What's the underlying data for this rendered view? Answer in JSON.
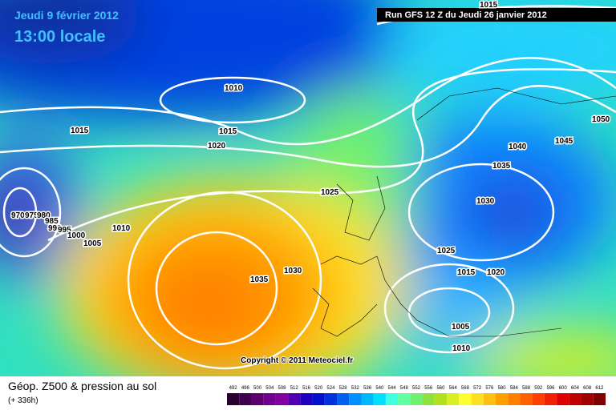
{
  "header": {
    "date": "Jeudi 9 février 2012",
    "time": "13:00 locale",
    "run": "Run GFS 12 Z du Jeudi 26 janvier 2012"
  },
  "map": {
    "isobar_labels": [
      "1015",
      "1010",
      "1015",
      "1015",
      "1020",
      "1050",
      "1040",
      "1045",
      "1035",
      "1025",
      "1030",
      "970",
      "975",
      "980",
      "985",
      "990",
      "995",
      "1000",
      "1005",
      "1010",
      "1035",
      "1030",
      "1025",
      "1015",
      "1020",
      "1005",
      "1010"
    ],
    "copyright": "Copyright © 2011 Meteociel.fr"
  },
  "legend": {
    "title": "Géop. Z500 & pression au sol",
    "subtitle": "(+ 336h)",
    "labels": [
      "492",
      "496",
      "500",
      "504",
      "508",
      "512",
      "516",
      "520",
      "524",
      "528",
      "532",
      "536",
      "540",
      "544",
      "548",
      "552",
      "556",
      "560",
      "564",
      "568",
      "572",
      "576",
      "580",
      "584",
      "588",
      "592",
      "596",
      "600",
      "604",
      "608",
      "612"
    ],
    "colors": [
      "#2a0030",
      "#400050",
      "#5a0070",
      "#700090",
      "#8000a0",
      "#5000b0",
      "#2000c0",
      "#0010d0",
      "#0030e0",
      "#0060f0",
      "#0090ff",
      "#00b8ff",
      "#00e0ff",
      "#40ffe0",
      "#60ffa0",
      "#70f070",
      "#90e040",
      "#b0e020",
      "#d8f020",
      "#ffff30",
      "#ffe020",
      "#ffc010",
      "#ffa000",
      "#ff8000",
      "#ff6000",
      "#ff4000",
      "#f02000",
      "#e00000",
      "#c00000",
      "#a00000",
      "#800000"
    ]
  }
}
